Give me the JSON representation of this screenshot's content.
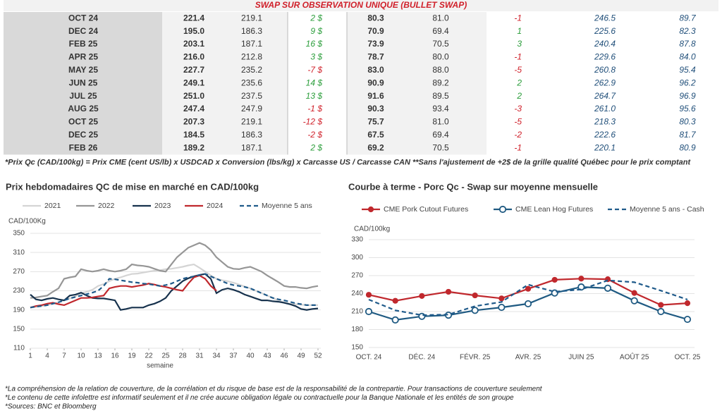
{
  "table": {
    "title": "SWAP SUR OBSERVATION UNIQUE (BULLET SWAP)",
    "rows": [
      [
        "OCT 24",
        "221.4",
        "219.1",
        "2 $",
        "80.3",
        "81.0",
        "-1",
        "246.5",
        "89.7"
      ],
      [
        "DEC 24",
        "195.0",
        "186.3",
        "9 $",
        "70.9",
        "69.4",
        "1",
        "225.6",
        "82.3"
      ],
      [
        "FEB 25",
        "203.1",
        "187.1",
        "16 $",
        "73.9",
        "70.5",
        "3",
        "240.4",
        "87.8"
      ],
      [
        "APR 25",
        "216.0",
        "212.8",
        "3 $",
        "78.7",
        "80.0",
        "-1",
        "229.6",
        "84.0"
      ],
      [
        "MAY 25",
        "227.7",
        "235.2",
        "-7 $",
        "83.0",
        "88.0",
        "-5",
        "260.8",
        "95.4"
      ],
      [
        "JUN 25",
        "249.1",
        "235.6",
        "14 $",
        "90.9",
        "89.2",
        "2",
        "262.9",
        "96.2"
      ],
      [
        "JUL 25",
        "251.0",
        "237.5",
        "13 $",
        "91.6",
        "89.5",
        "2",
        "264.7",
        "96.9"
      ],
      [
        "AUG 25",
        "247.4",
        "247.9",
        "-1 $",
        "90.3",
        "93.4",
        "-3",
        "261.0",
        "95.6"
      ],
      [
        "OCT 25",
        "207.3",
        "219.1",
        "-12 $",
        "75.7",
        "81.0",
        "-5",
        "218.3",
        "80.3"
      ],
      [
        "DEC 25",
        "184.5",
        "186.3",
        "-2 $",
        "67.5",
        "69.4",
        "-2",
        "222.6",
        "81.7"
      ],
      [
        "FEB 26",
        "189.2",
        "187.1",
        "2 $",
        "69.2",
        "70.5",
        "-1",
        "220.1",
        "80.9"
      ]
    ],
    "footnote": "*Prix Qc (CAD/100kg) = Prix CME (cent US/lb) x USDCAD x Conversion (lbs/kg) x Carcasse US / Carcasse CAN **Sans l'ajustement de +2$ de la grille qualité Québec pour le prix comptant"
  },
  "chart_data": [
    {
      "type": "line",
      "title": "Prix hebdomadaires QC de mise en marché en CAD/100kg",
      "ylabel": "CAD/100Kg",
      "xlabel": "semaine",
      "x": [
        1,
        2,
        3,
        4,
        5,
        6,
        7,
        8,
        9,
        10,
        11,
        12,
        13,
        14,
        15,
        16,
        17,
        18,
        19,
        20,
        21,
        22,
        23,
        24,
        25,
        26,
        27,
        28,
        29,
        30,
        31,
        32,
        33,
        34,
        35,
        36,
        37,
        38,
        39,
        40,
        41,
        42,
        43,
        44,
        45,
        46,
        47,
        48,
        49,
        50,
        51,
        52
      ],
      "xlim": [
        1,
        52
      ],
      "xticks": [
        1,
        4,
        7,
        10,
        13,
        16,
        19,
        22,
        25,
        28,
        31,
        34,
        37,
        40,
        43,
        46,
        49,
        52
      ],
      "ylim": [
        110,
        350
      ],
      "yticks": [
        110,
        150,
        190,
        230,
        270,
        310,
        350
      ],
      "grid": true,
      "series": [
        {
          "name": "2021",
          "color": "#d4d4d4",
          "style": "solid",
          "values": [
            195,
            196,
            198,
            200,
            203,
            206,
            210,
            214,
            218,
            225,
            228,
            232,
            240,
            244,
            250,
            255,
            258,
            262,
            265,
            266,
            268,
            270,
            272,
            273,
            275,
            276,
            278,
            280,
            283,
            285,
            278,
            270,
            262,
            255,
            252,
            250,
            247,
            243,
            239,
            235,
            230,
            225,
            220,
            215,
            210,
            205,
            203,
            202,
            201,
            200,
            200,
            200
          ]
        },
        {
          "name": "2022",
          "color": "#969696",
          "style": "solid",
          "values": [
            215,
            216,
            218,
            220,
            228,
            235,
            255,
            258,
            260,
            275,
            272,
            270,
            272,
            275,
            272,
            270,
            272,
            275,
            285,
            283,
            282,
            280,
            276,
            272,
            270,
            285,
            300,
            310,
            320,
            325,
            330,
            325,
            315,
            300,
            290,
            280,
            276,
            275,
            278,
            280,
            275,
            270,
            262,
            255,
            248,
            240,
            238,
            238,
            236,
            235,
            238,
            240
          ]
        },
        {
          "name": "2023",
          "color": "#17324d",
          "style": "solid",
          "values": [
            222,
            212,
            210,
            213,
            215,
            212,
            210,
            220,
            222,
            226,
            220,
            215,
            214,
            214,
            212,
            210,
            190,
            192,
            195,
            195,
            195,
            200,
            203,
            208,
            215,
            230,
            240,
            250,
            256,
            260,
            263,
            265,
            255,
            225,
            232,
            235,
            232,
            228,
            222,
            218,
            214,
            210,
            210,
            208,
            207,
            205,
            202,
            198,
            192,
            190,
            192,
            193
          ]
        },
        {
          "name": "2024",
          "color": "#c0282d",
          "style": "solid",
          "values": [
            195,
            198,
            200,
            203,
            205,
            202,
            200,
            205,
            210,
            215,
            215,
            216,
            218,
            220,
            235,
            238,
            240,
            240,
            238,
            240,
            242,
            245,
            243,
            240,
            238,
            235,
            232,
            230,
            245,
            258,
            262,
            255,
            240,
            230,
            null,
            null,
            null,
            null,
            null,
            null,
            null,
            null,
            null,
            null,
            null,
            null,
            null,
            null,
            null,
            null,
            null,
            null
          ]
        },
        {
          "name": "Moyenne 5 ans",
          "color": "#1f5a8a",
          "style": "dashed",
          "values": [
            195,
            197,
            198,
            200,
            203,
            206,
            210,
            214,
            217,
            220,
            223,
            226,
            230,
            240,
            255,
            254,
            252,
            250,
            248,
            247,
            245,
            244,
            242,
            240,
            242,
            245,
            250,
            255,
            258,
            260,
            263,
            265,
            260,
            255,
            250,
            245,
            242,
            240,
            238,
            235,
            230,
            225,
            220,
            215,
            212,
            210,
            207,
            204,
            202,
            200,
            200,
            200
          ]
        }
      ]
    },
    {
      "type": "line",
      "title": "Courbe à terme - Porc Qc - Swap sur moyenne mensuelle",
      "ylabel": "CAD/100kg",
      "categories": [
        "OCT. 24",
        null,
        "DÉC. 24",
        null,
        "FÉVR. 25",
        null,
        "AVR. 25",
        null,
        "JUIN 25",
        null,
        "AOÛT 25",
        null,
        "OCT. 25"
      ],
      "ylim": [
        150,
        330
      ],
      "yticks": [
        150,
        180,
        210,
        240,
        270,
        300,
        330
      ],
      "grid": true,
      "series": [
        {
          "name": "CME Pork Cutout Futures",
          "color": "#c0282d",
          "style": "solid",
          "marker": "dot",
          "values": [
            238,
            228,
            236,
            243,
            237,
            232,
            248,
            263,
            265,
            264,
            241,
            221,
            224
          ]
        },
        {
          "name": "CME Lean Hog Futures",
          "color": "#1f5a82",
          "style": "solid",
          "marker": "circle",
          "values": [
            210,
            196,
            202,
            204,
            212,
            217,
            223,
            241,
            251,
            249,
            228,
            210,
            197
          ]
        },
        {
          "name": "Moyenne 5 ans - Cash",
          "color": "#1f5a8a",
          "style": "dashed",
          "values": [
            230,
            212,
            204,
            205,
            219,
            226,
            255,
            243,
            247,
            262,
            259,
            245,
            230
          ]
        }
      ]
    }
  ],
  "notes": [
    "*La compréhension de la relation de couverture, de la corrélation et du risque de base est de la responsabilité de la contrepartie. Pour transactions de couverture seulement",
    "*Le contenu de cette infolettre est informatif seulement et il ne crée aucune obligation légale ou contractuelle pour la Banque Nationale et les entités de son groupe",
    "*Sources: BNC et Bloomberg"
  ]
}
